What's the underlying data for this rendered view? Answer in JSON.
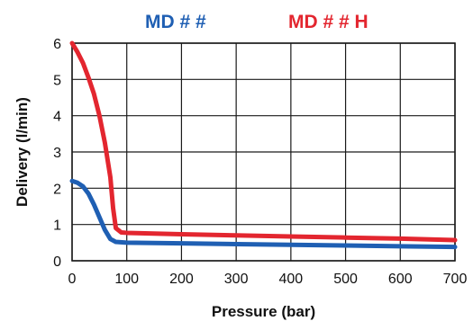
{
  "chart_data": {
    "type": "line",
    "title": "",
    "xlabel": "Pressure (bar)",
    "ylabel": "Delivery (l/min)",
    "xlim": [
      0,
      700
    ],
    "ylim": [
      0,
      6
    ],
    "x_ticks": [
      0,
      100,
      200,
      300,
      400,
      500,
      600,
      700
    ],
    "y_ticks": [
      0,
      1,
      2,
      3,
      4,
      5,
      6
    ],
    "x_tick_labels": [
      "0",
      "100",
      "200",
      "300",
      "400",
      "500",
      "600",
      "700"
    ],
    "y_tick_labels": [
      "0",
      "1",
      "2",
      "3",
      "4",
      "5",
      "6"
    ],
    "grid": true,
    "legend_position": "top",
    "series": [
      {
        "name": "MD # #",
        "color": "#1f5fb3",
        "points": [
          [
            0,
            2.2
          ],
          [
            10,
            2.15
          ],
          [
            20,
            2.05
          ],
          [
            30,
            1.85
          ],
          [
            40,
            1.55
          ],
          [
            50,
            1.2
          ],
          [
            60,
            0.85
          ],
          [
            70,
            0.6
          ],
          [
            80,
            0.52
          ],
          [
            100,
            0.5
          ],
          [
            200,
            0.48
          ],
          [
            300,
            0.46
          ],
          [
            400,
            0.44
          ],
          [
            500,
            0.42
          ],
          [
            600,
            0.4
          ],
          [
            700,
            0.38
          ]
        ]
      },
      {
        "name": "MD # # H",
        "color": "#e3262f",
        "points": [
          [
            0,
            6.0
          ],
          [
            10,
            5.75
          ],
          [
            20,
            5.45
          ],
          [
            30,
            5.05
          ],
          [
            40,
            4.6
          ],
          [
            50,
            4.0
          ],
          [
            60,
            3.25
          ],
          [
            70,
            2.3
          ],
          [
            75,
            1.45
          ],
          [
            80,
            0.9
          ],
          [
            90,
            0.78
          ],
          [
            100,
            0.77
          ],
          [
            200,
            0.73
          ],
          [
            300,
            0.7
          ],
          [
            400,
            0.67
          ],
          [
            500,
            0.64
          ],
          [
            600,
            0.61
          ],
          [
            700,
            0.57
          ]
        ]
      }
    ]
  }
}
